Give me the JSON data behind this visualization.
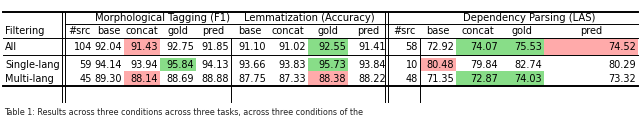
{
  "rows": [
    [
      "All",
      "104",
      "92.04",
      "91.43",
      "92.75",
      "91.85",
      "91.10",
      "91.02",
      "92.55",
      "91.41",
      "58",
      "72.92",
      "74.07",
      "75.53",
      "74.52"
    ],
    [
      "Single-lang",
      "59",
      "94.14",
      "93.94",
      "95.84",
      "94.13",
      "93.66",
      "93.83",
      "95.73",
      "93.84",
      "10",
      "80.48",
      "79.84",
      "82.74",
      "80.29"
    ],
    [
      "Multi-lang",
      "45",
      "89.30",
      "88.14",
      "88.69",
      "88.88",
      "87.75",
      "87.33",
      "88.38",
      "88.22",
      "48",
      "71.35",
      "72.87",
      "74.03",
      "73.32"
    ]
  ],
  "cell_colors": {
    "0_3": "#ffaaaa",
    "0_8": "#88dd88",
    "0_12": "#88dd88",
    "0_13": "#88dd88",
    "0_14": "#ffaaaa",
    "1_4": "#88dd88",
    "1_8": "#88dd88",
    "1_11": "#ffaaaa",
    "2_3": "#ffaaaa",
    "2_8": "#ffaaaa",
    "2_12": "#88dd88",
    "2_13": "#88dd88"
  },
  "footer": "Table 1: Results across three conditions across three tasks, across three conditions of the",
  "bg": "#ffffff"
}
